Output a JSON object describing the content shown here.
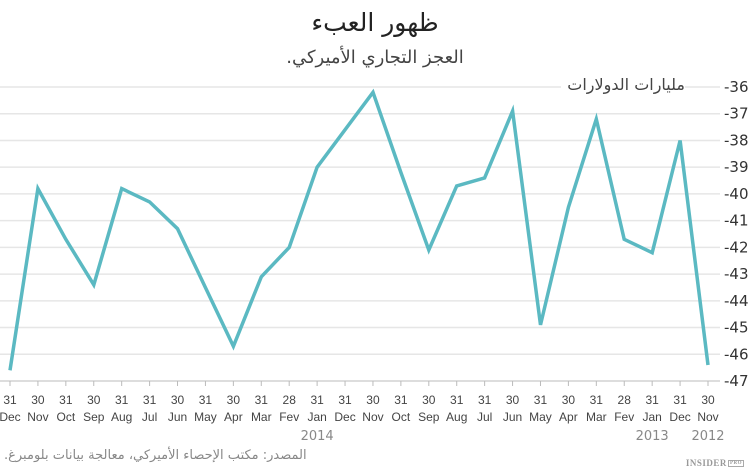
{
  "header": {
    "title": "ظهور العبء",
    "subtitle": "العجز التجاري الأميركي."
  },
  "axis": {
    "unit_label": "مليارات الدولارات"
  },
  "footer": {
    "source": "المصدر: مكتب الإحصاء الأميركي، معالجة بيانات بلومبرغ.",
    "brand": "INSIDER",
    "brand_badge": "PRO"
  },
  "colors": {
    "line": "#5bb9c2",
    "grid": "#e6e6e6",
    "axis": "#bbbbbb"
  },
  "chart_data": {
    "type": "line",
    "title": "ظهور العبء",
    "subtitle": "العجز التجاري الأميركي.",
    "xlabel": "",
    "ylabel": "مليارات الدولارات",
    "ylim": [
      -47,
      -36
    ],
    "yticks": [
      -36,
      -37,
      -38,
      -39,
      -40,
      -41,
      -42,
      -43,
      -44,
      -45,
      -46,
      -47
    ],
    "y_axis_position": "right",
    "grid": true,
    "legend": "none",
    "x_order": "reverse-chronological (left = latest)",
    "categories": [
      {
        "day": "31",
        "month": "Dec"
      },
      {
        "day": "30",
        "month": "Nov"
      },
      {
        "day": "31",
        "month": "Oct"
      },
      {
        "day": "30",
        "month": "Sep"
      },
      {
        "day": "31",
        "month": "Aug"
      },
      {
        "day": "31",
        "month": "Jul"
      },
      {
        "day": "30",
        "month": "Jun"
      },
      {
        "day": "31",
        "month": "May"
      },
      {
        "day": "30",
        "month": "Apr"
      },
      {
        "day": "31",
        "month": "Mar"
      },
      {
        "day": "28",
        "month": "Fev"
      },
      {
        "day": "31",
        "month": "Jan"
      },
      {
        "day": "31",
        "month": "Dec"
      },
      {
        "day": "30",
        "month": "Nov"
      },
      {
        "day": "31",
        "month": "Oct"
      },
      {
        "day": "30",
        "month": "Sep"
      },
      {
        "day": "31",
        "month": "Aug"
      },
      {
        "day": "31",
        "month": "Jul"
      },
      {
        "day": "30",
        "month": "Jun"
      },
      {
        "day": "31",
        "month": "May"
      },
      {
        "day": "30",
        "month": "Apr"
      },
      {
        "day": "31",
        "month": "Mar"
      },
      {
        "day": "28",
        "month": "Fev"
      },
      {
        "day": "31",
        "month": "Jan"
      },
      {
        "day": "31",
        "month": "Dec"
      },
      {
        "day": "30",
        "month": "Nov"
      }
    ],
    "year_labels": [
      {
        "label": "2014",
        "at_index": 11
      },
      {
        "label": "2013",
        "at_index": 23
      },
      {
        "label": "2012",
        "at_index": 25
      }
    ],
    "series": [
      {
        "name": "US trade deficit",
        "values": [
          -46.6,
          -39.8,
          -41.7,
          -43.4,
          -39.8,
          -40.3,
          -41.3,
          -43.5,
          -45.7,
          -43.1,
          -42.0,
          -39.0,
          -37.6,
          -36.2,
          -39.2,
          -42.1,
          -39.7,
          -39.4,
          -36.9,
          -44.9,
          -40.5,
          -37.2,
          -41.7,
          -42.2,
          -38.0,
          -46.4
        ]
      }
    ]
  }
}
